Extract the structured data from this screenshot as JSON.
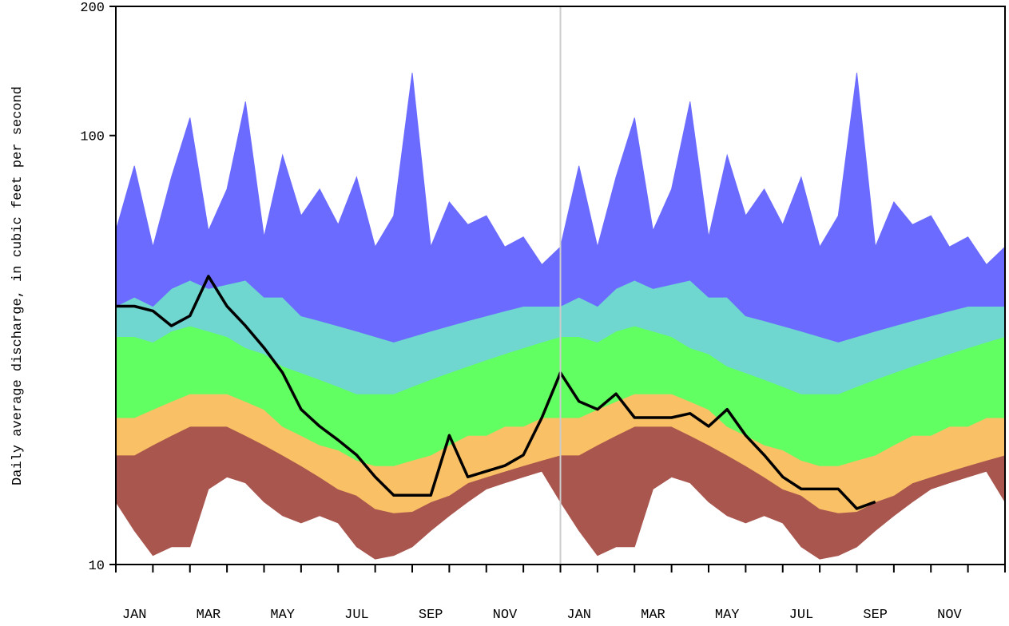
{
  "chart_data": {
    "type": "percentile-area",
    "ylabel": "Daily average discharge, in cubic feet per second",
    "log_y": true,
    "ylim": [
      10,
      200
    ],
    "yticks": [
      10,
      100,
      200
    ],
    "xlim": [
      0,
      24
    ],
    "xticks": [
      {
        "value": 0.5,
        "label": "JAN"
      },
      {
        "value": 2.5,
        "label": "MAR"
      },
      {
        "value": 4.5,
        "label": "MAY"
      },
      {
        "value": 6.5,
        "label": "JUL"
      },
      {
        "value": 8.5,
        "label": "SEP"
      },
      {
        "value": 10.5,
        "label": "NOV"
      },
      {
        "value": 12.5,
        "label": "JAN"
      },
      {
        "value": 14.5,
        "label": "MAR"
      },
      {
        "value": 16.5,
        "label": "MAY"
      },
      {
        "value": 18.5,
        "label": "JUL"
      },
      {
        "value": 20.5,
        "label": "SEP"
      },
      {
        "value": 22.5,
        "label": "NOV"
      }
    ],
    "month_ticks": [
      0,
      1,
      2,
      3,
      4,
      5,
      6,
      7,
      8,
      9,
      10,
      11,
      12,
      13,
      14,
      15,
      16,
      17,
      18,
      19,
      20,
      21,
      22,
      23,
      24
    ],
    "divider_x": 12,
    "x": [
      0,
      0.5,
      1,
      1.5,
      2,
      2.5,
      3,
      3.5,
      4,
      4.5,
      5,
      5.5,
      6,
      6.5,
      7,
      7.5,
      8,
      8.5,
      9,
      9.5,
      10,
      10.5,
      11,
      11.5,
      12,
      12.5,
      13,
      13.5,
      14,
      14.5,
      15,
      15.5,
      16,
      16.5,
      17,
      17.5,
      18,
      18.5,
      19,
      19.5,
      20,
      20.5,
      21,
      21.5,
      22,
      22.5,
      23,
      23.5,
      24
    ],
    "bands": [
      {
        "color": "#a9564f",
        "low": [
          14,
          12,
          10.5,
          11,
          11,
          15,
          16,
          15.5,
          14,
          13,
          12.5,
          13,
          12.5,
          11,
          10.3,
          10.5,
          11,
          12,
          13,
          14,
          15,
          15.5,
          16,
          16.5,
          14,
          12,
          10.5,
          11,
          11,
          15,
          16,
          15.5,
          14,
          13,
          12.5,
          13,
          12.5,
          11,
          10.3,
          10.5,
          11,
          12,
          13,
          14,
          15,
          15.5,
          16,
          16.5,
          14
        ],
        "high": [
          18,
          18,
          19,
          20,
          21,
          21,
          21,
          20,
          19,
          18,
          17,
          16,
          15,
          14.5,
          13.5,
          13.2,
          13.3,
          14,
          14.5,
          15.5,
          16,
          16.5,
          17,
          17.5,
          18,
          18,
          19,
          20,
          21,
          21,
          21,
          20,
          19,
          18,
          17,
          16,
          15,
          14.5,
          13.5,
          13.2,
          13.3,
          14,
          14.5,
          15.5,
          16,
          16.5,
          17,
          17.5,
          18
        ]
      },
      {
        "color": "#f9c065",
        "low": [
          18,
          18,
          19,
          20,
          21,
          21,
          21,
          20,
          19,
          18,
          17,
          16,
          15,
          14.5,
          13.5,
          13.2,
          13.3,
          14,
          14.5,
          15.5,
          16,
          16.5,
          17,
          17.5,
          18,
          18,
          19,
          20,
          21,
          21,
          21,
          20,
          19,
          18,
          17,
          16,
          15,
          14.5,
          13.5,
          13.2,
          13.3,
          14,
          14.5,
          15.5,
          16,
          16.5,
          17,
          17.5,
          18
        ],
        "high": [
          22,
          22,
          23,
          24,
          25,
          25,
          25,
          24,
          23,
          21,
          20,
          19,
          18.5,
          17.5,
          17,
          17,
          17.5,
          18,
          19,
          20,
          20,
          21,
          21,
          22,
          22,
          22,
          23,
          24,
          25,
          25,
          25,
          24,
          23,
          21,
          20,
          19,
          18.5,
          17.5,
          17,
          17,
          17.5,
          18,
          19,
          20,
          20,
          21,
          21,
          22,
          22
        ]
      },
      {
        "color": "#62ff62",
        "low": [
          22,
          22,
          23,
          24,
          25,
          25,
          25,
          24,
          23,
          21,
          20,
          19,
          18.5,
          17.5,
          17,
          17,
          17.5,
          18,
          19,
          20,
          20,
          21,
          21,
          22,
          22,
          22,
          23,
          24,
          25,
          25,
          25,
          24,
          23,
          21,
          20,
          19,
          18.5,
          17.5,
          17,
          17,
          17.5,
          18,
          19,
          20,
          20,
          21,
          21,
          22,
          22
        ],
        "high": [
          34,
          34,
          33,
          35,
          36,
          35,
          34,
          32,
          31,
          29,
          28,
          27,
          26,
          25,
          25,
          25,
          26,
          27,
          28,
          29,
          30,
          31,
          32,
          33,
          34,
          34,
          33,
          35,
          36,
          35,
          34,
          32,
          31,
          29,
          28,
          27,
          26,
          25,
          25,
          25,
          26,
          27,
          28,
          29,
          30,
          31,
          32,
          33,
          34
        ]
      },
      {
        "color": "#6fd6d0",
        "low": [
          34,
          34,
          33,
          35,
          36,
          35,
          34,
          32,
          31,
          29,
          28,
          27,
          26,
          25,
          25,
          25,
          26,
          27,
          28,
          29,
          30,
          31,
          32,
          33,
          34,
          34,
          33,
          35,
          36,
          35,
          34,
          32,
          31,
          29,
          28,
          27,
          26,
          25,
          25,
          25,
          26,
          27,
          28,
          29,
          30,
          31,
          32,
          33,
          34
        ],
        "high": [
          40,
          42,
          40,
          44,
          46,
          44,
          45,
          46,
          42,
          42,
          38,
          37,
          36,
          35,
          34,
          33,
          34,
          35,
          36,
          37,
          38,
          39,
          40,
          40,
          40,
          42,
          40,
          44,
          46,
          44,
          45,
          46,
          42,
          42,
          38,
          37,
          36,
          35,
          34,
          33,
          34,
          35,
          36,
          37,
          38,
          39,
          40,
          40,
          40
        ]
      },
      {
        "color": "#6b6bff",
        "low": [
          40,
          42,
          40,
          44,
          46,
          44,
          45,
          46,
          42,
          42,
          38,
          37,
          36,
          35,
          34,
          33,
          34,
          35,
          36,
          37,
          38,
          39,
          40,
          40,
          40,
          42,
          40,
          44,
          46,
          44,
          45,
          46,
          42,
          42,
          38,
          37,
          36,
          35,
          34,
          33,
          34,
          35,
          36,
          37,
          38,
          39,
          40,
          40,
          40
        ],
        "high": [
          60,
          85,
          55,
          80,
          110,
          60,
          75,
          120,
          58,
          90,
          65,
          75,
          62,
          80,
          55,
          65,
          140,
          55,
          70,
          62,
          65,
          55,
          58,
          50,
          55,
          85,
          55,
          80,
          110,
          60,
          75,
          120,
          58,
          90,
          65,
          75,
          62,
          80,
          55,
          65,
          140,
          55,
          70,
          62,
          65,
          55,
          58,
          50,
          55
        ]
      }
    ],
    "line": {
      "color": "#000000",
      "values": [
        40,
        40,
        39,
        36,
        38,
        47,
        40,
        36,
        32,
        28,
        23,
        21,
        19.5,
        18,
        16,
        14.5,
        14.5,
        14.5,
        20,
        16,
        16.5,
        17,
        18,
        22,
        28,
        24,
        23,
        25,
        22,
        22,
        22,
        22.5,
        21,
        23,
        20,
        18,
        16,
        15,
        15,
        15,
        13.5,
        14,
        null,
        null,
        null,
        null,
        null,
        null,
        null
      ]
    }
  }
}
